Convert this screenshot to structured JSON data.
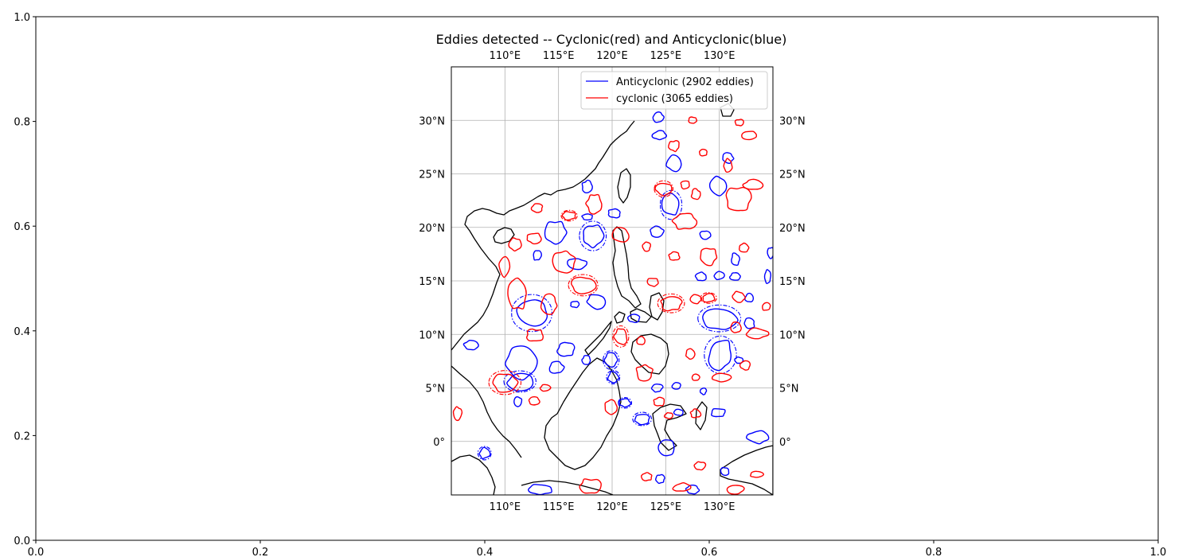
{
  "chart_data": {
    "type": "scatter",
    "title": "Eddies detected -- Cyclonic(red) and Anticyclonic(blue)",
    "outer_axes": {
      "xlim": [
        0.0,
        1.0
      ],
      "ylim": [
        0.0,
        1.0
      ],
      "x_ticks": [
        "0.0",
        "0.2",
        "0.4",
        "0.6",
        "0.8",
        "1.0"
      ],
      "y_ticks": [
        "0.0",
        "0.2",
        "0.4",
        "0.6",
        "0.8",
        "1.0"
      ]
    },
    "map": {
      "lon_range": [
        105,
        135
      ],
      "lat_range": [
        -5,
        35
      ],
      "lon_ticks": [
        "110°E",
        "115°E",
        "120°E",
        "125°E",
        "130°E"
      ],
      "lat_ticks": [
        "0°",
        "5°N",
        "10°N",
        "15°N",
        "20°N",
        "25°N",
        "30°N"
      ],
      "lon_tick_values": [
        110,
        115,
        120,
        125,
        130
      ],
      "lat_tick_values": [
        0,
        5,
        10,
        15,
        20,
        25,
        30
      ],
      "grid": true
    },
    "legend": {
      "location": "top-right",
      "entries": [
        {
          "label": "Anticyclonic (2902 eddies)",
          "color": "#0000ff"
        },
        {
          "label": "cyclonic (3065 eddies)",
          "color": "#ff0000"
        }
      ]
    },
    "colors": {
      "anticyclonic": "#0000ff",
      "cyclonic": "#ff0000",
      "coast": "#000000",
      "grid": "#b0b0b0"
    },
    "series": [
      {
        "name": "Anticyclonic (2902 eddies)",
        "kind": "anticyclonic",
        "eddies": [
          {
            "lon": 124.3,
            "lat": 30.3,
            "rx": 0.5,
            "ry": 0.5
          },
          {
            "lon": 124.4,
            "lat": 28.6,
            "rx": 0.7,
            "ry": 0.4
          },
          {
            "lon": 125.8,
            "lat": 26.0,
            "rx": 0.7,
            "ry": 0.8
          },
          {
            "lon": 130.8,
            "lat": 26.5,
            "rx": 0.5,
            "ry": 0.5
          },
          {
            "lon": 129.9,
            "lat": 23.8,
            "rx": 0.8,
            "ry": 0.9
          },
          {
            "lon": 125.5,
            "lat": 22.1,
            "rx": 0.8,
            "ry": 1.0,
            "dashed": true
          },
          {
            "lon": 117.7,
            "lat": 23.8,
            "rx": 0.5,
            "ry": 0.6
          },
          {
            "lon": 120.2,
            "lat": 21.3,
            "rx": 0.6,
            "ry": 0.4
          },
          {
            "lon": 117.7,
            "lat": 21.0,
            "rx": 0.5,
            "ry": 0.3
          },
          {
            "lon": 114.7,
            "lat": 19.5,
            "rx": 1.1,
            "ry": 1.1
          },
          {
            "lon": 118.2,
            "lat": 19.2,
            "rx": 1.0,
            "ry": 1.1,
            "dashed": true
          },
          {
            "lon": 113.0,
            "lat": 17.4,
            "rx": 0.4,
            "ry": 0.5
          },
          {
            "lon": 116.7,
            "lat": 16.6,
            "rx": 0.9,
            "ry": 0.5
          },
          {
            "lon": 124.2,
            "lat": 19.6,
            "rx": 0.6,
            "ry": 0.5
          },
          {
            "lon": 128.7,
            "lat": 19.3,
            "rx": 0.5,
            "ry": 0.4
          },
          {
            "lon": 131.5,
            "lat": 17.0,
            "rx": 0.4,
            "ry": 0.6
          },
          {
            "lon": 128.3,
            "lat": 15.4,
            "rx": 0.5,
            "ry": 0.4
          },
          {
            "lon": 130.0,
            "lat": 15.5,
            "rx": 0.5,
            "ry": 0.4
          },
          {
            "lon": 131.5,
            "lat": 15.4,
            "rx": 0.5,
            "ry": 0.4
          },
          {
            "lon": 134.8,
            "lat": 17.6,
            "rx": 0.3,
            "ry": 0.5
          },
          {
            "lon": 134.5,
            "lat": 15.4,
            "rx": 0.3,
            "ry": 0.6
          },
          {
            "lon": 132.8,
            "lat": 13.4,
            "rx": 0.4,
            "ry": 0.4
          },
          {
            "lon": 130.0,
            "lat": 11.5,
            "rx": 1.6,
            "ry": 1.0,
            "dashed": true
          },
          {
            "lon": 132.8,
            "lat": 11.0,
            "rx": 0.5,
            "ry": 0.5
          },
          {
            "lon": 112.5,
            "lat": 12.0,
            "rx": 1.5,
            "ry": 1.3,
            "dashed": true
          },
          {
            "lon": 118.5,
            "lat": 13.1,
            "rx": 0.9,
            "ry": 0.7
          },
          {
            "lon": 116.5,
            "lat": 12.8,
            "rx": 0.4,
            "ry": 0.3
          },
          {
            "lon": 122.0,
            "lat": 11.5,
            "rx": 0.6,
            "ry": 0.4
          },
          {
            "lon": 106.9,
            "lat": 9.0,
            "rx": 0.7,
            "ry": 0.5
          },
          {
            "lon": 111.5,
            "lat": 7.4,
            "rx": 1.4,
            "ry": 1.6
          },
          {
            "lon": 115.7,
            "lat": 8.6,
            "rx": 0.8,
            "ry": 0.7
          },
          {
            "lon": 114.8,
            "lat": 6.9,
            "rx": 0.7,
            "ry": 0.6
          },
          {
            "lon": 117.6,
            "lat": 7.6,
            "rx": 0.4,
            "ry": 0.4
          },
          {
            "lon": 119.9,
            "lat": 7.6,
            "rx": 0.6,
            "ry": 0.7,
            "dashed": true
          },
          {
            "lon": 120.1,
            "lat": 6.0,
            "rx": 0.5,
            "ry": 0.5,
            "dashed": true
          },
          {
            "lon": 130.1,
            "lat": 8.1,
            "rx": 1.2,
            "ry": 1.4,
            "dashed": true
          },
          {
            "lon": 131.8,
            "lat": 7.6,
            "rx": 0.4,
            "ry": 0.3
          },
          {
            "lon": 111.4,
            "lat": 5.6,
            "rx": 1.2,
            "ry": 0.8,
            "dashed": true
          },
          {
            "lon": 124.2,
            "lat": 5.0,
            "rx": 0.5,
            "ry": 0.4
          },
          {
            "lon": 126.0,
            "lat": 5.2,
            "rx": 0.4,
            "ry": 0.3
          },
          {
            "lon": 128.5,
            "lat": 4.7,
            "rx": 0.3,
            "ry": 0.3
          },
          {
            "lon": 111.2,
            "lat": 3.7,
            "rx": 0.4,
            "ry": 0.5
          },
          {
            "lon": 121.2,
            "lat": 3.6,
            "rx": 0.5,
            "ry": 0.4,
            "dashed": true
          },
          {
            "lon": 122.8,
            "lat": 2.1,
            "rx": 0.7,
            "ry": 0.5,
            "dashed": true
          },
          {
            "lon": 126.2,
            "lat": 2.7,
            "rx": 0.4,
            "ry": 0.3
          },
          {
            "lon": 129.9,
            "lat": 2.7,
            "rx": 0.7,
            "ry": 0.4
          },
          {
            "lon": 133.6,
            "lat": 0.4,
            "rx": 1.0,
            "ry": 0.6
          },
          {
            "lon": 125.0,
            "lat": -0.6,
            "rx": 0.8,
            "ry": 0.8
          },
          {
            "lon": 108.1,
            "lat": -1.1,
            "rx": 0.5,
            "ry": 0.5,
            "dashed": true
          },
          {
            "lon": 113.3,
            "lat": -4.5,
            "rx": 1.1,
            "ry": 0.5
          },
          {
            "lon": 124.5,
            "lat": -3.5,
            "rx": 0.4,
            "ry": 0.4
          },
          {
            "lon": 130.5,
            "lat": -2.8,
            "rx": 0.4,
            "ry": 0.4
          },
          {
            "lon": 127.5,
            "lat": -4.5,
            "rx": 0.6,
            "ry": 0.4
          }
        ]
      },
      {
        "name": "cyclonic (3065 eddies)",
        "kind": "cyclonic",
        "eddies": [
          {
            "lon": 127.5,
            "lat": 30.0,
            "rx": 0.4,
            "ry": 0.3
          },
          {
            "lon": 125.8,
            "lat": 27.6,
            "rx": 0.5,
            "ry": 0.5
          },
          {
            "lon": 128.5,
            "lat": 27.0,
            "rx": 0.4,
            "ry": 0.3
          },
          {
            "lon": 132.8,
            "lat": 28.6,
            "rx": 0.8,
            "ry": 0.4
          },
          {
            "lon": 131.9,
            "lat": 29.8,
            "rx": 0.4,
            "ry": 0.3
          },
          {
            "lon": 130.8,
            "lat": 25.8,
            "rx": 0.4,
            "ry": 0.6
          },
          {
            "lon": 133.2,
            "lat": 24.0,
            "rx": 0.9,
            "ry": 0.5
          },
          {
            "lon": 131.8,
            "lat": 22.6,
            "rx": 1.2,
            "ry": 1.2
          },
          {
            "lon": 124.8,
            "lat": 23.6,
            "rx": 0.7,
            "ry": 0.6,
            "dashed": true
          },
          {
            "lon": 126.8,
            "lat": 24.0,
            "rx": 0.4,
            "ry": 0.4
          },
          {
            "lon": 127.8,
            "lat": 23.1,
            "rx": 0.4,
            "ry": 0.5
          },
          {
            "lon": 126.8,
            "lat": 20.6,
            "rx": 1.1,
            "ry": 0.8
          },
          {
            "lon": 118.3,
            "lat": 22.2,
            "rx": 0.7,
            "ry": 0.9
          },
          {
            "lon": 116.0,
            "lat": 21.1,
            "rx": 0.6,
            "ry": 0.4,
            "dashed": true
          },
          {
            "lon": 113.0,
            "lat": 21.8,
            "rx": 0.5,
            "ry": 0.4
          },
          {
            "lon": 120.8,
            "lat": 19.3,
            "rx": 0.8,
            "ry": 0.7
          },
          {
            "lon": 112.7,
            "lat": 19.0,
            "rx": 0.7,
            "ry": 0.5
          },
          {
            "lon": 111.0,
            "lat": 18.4,
            "rx": 0.6,
            "ry": 0.6
          },
          {
            "lon": 123.2,
            "lat": 18.2,
            "rx": 0.4,
            "ry": 0.4
          },
          {
            "lon": 125.8,
            "lat": 17.3,
            "rx": 0.5,
            "ry": 0.4
          },
          {
            "lon": 129.0,
            "lat": 17.3,
            "rx": 0.8,
            "ry": 0.8
          },
          {
            "lon": 132.3,
            "lat": 18.1,
            "rx": 0.5,
            "ry": 0.4
          },
          {
            "lon": 110.0,
            "lat": 16.4,
            "rx": 0.5,
            "ry": 1.0
          },
          {
            "lon": 115.5,
            "lat": 16.8,
            "rx": 1.0,
            "ry": 1.0
          },
          {
            "lon": 111.2,
            "lat": 13.8,
            "rx": 0.9,
            "ry": 1.5
          },
          {
            "lon": 114.1,
            "lat": 12.8,
            "rx": 0.8,
            "ry": 0.9
          },
          {
            "lon": 117.3,
            "lat": 14.6,
            "rx": 1.1,
            "ry": 0.8,
            "dashed": true
          },
          {
            "lon": 123.8,
            "lat": 14.9,
            "rx": 0.5,
            "ry": 0.4
          },
          {
            "lon": 125.5,
            "lat": 12.9,
            "rx": 1.0,
            "ry": 0.7,
            "dashed": true
          },
          {
            "lon": 127.8,
            "lat": 13.3,
            "rx": 0.5,
            "ry": 0.4
          },
          {
            "lon": 129.0,
            "lat": 13.4,
            "rx": 0.6,
            "ry": 0.4,
            "dashed": true
          },
          {
            "lon": 131.8,
            "lat": 13.5,
            "rx": 0.6,
            "ry": 0.5
          },
          {
            "lon": 134.4,
            "lat": 12.6,
            "rx": 0.4,
            "ry": 0.4
          },
          {
            "lon": 133.5,
            "lat": 10.1,
            "rx": 1.0,
            "ry": 0.5
          },
          {
            "lon": 131.5,
            "lat": 10.6,
            "rx": 0.5,
            "ry": 0.5
          },
          {
            "lon": 112.8,
            "lat": 9.9,
            "rx": 0.8,
            "ry": 0.6
          },
          {
            "lon": 120.8,
            "lat": 9.8,
            "rx": 0.6,
            "ry": 0.8,
            "dashed": true
          },
          {
            "lon": 122.7,
            "lat": 9.4,
            "rx": 0.4,
            "ry": 0.4
          },
          {
            "lon": 127.3,
            "lat": 8.2,
            "rx": 0.4,
            "ry": 0.5
          },
          {
            "lon": 123.0,
            "lat": 6.4,
            "rx": 0.8,
            "ry": 0.7
          },
          {
            "lon": 127.8,
            "lat": 6.0,
            "rx": 0.4,
            "ry": 0.3
          },
          {
            "lon": 130.2,
            "lat": 6.0,
            "rx": 0.9,
            "ry": 0.4
          },
          {
            "lon": 132.4,
            "lat": 7.1,
            "rx": 0.5,
            "ry": 0.4
          },
          {
            "lon": 110.0,
            "lat": 5.5,
            "rx": 1.2,
            "ry": 0.9,
            "dashed": true
          },
          {
            "lon": 113.8,
            "lat": 5.0,
            "rx": 0.5,
            "ry": 0.3
          },
          {
            "lon": 112.7,
            "lat": 3.8,
            "rx": 0.5,
            "ry": 0.4
          },
          {
            "lon": 119.9,
            "lat": 3.2,
            "rx": 0.6,
            "ry": 0.7
          },
          {
            "lon": 124.4,
            "lat": 3.7,
            "rx": 0.5,
            "ry": 0.4
          },
          {
            "lon": 125.3,
            "lat": 2.4,
            "rx": 0.4,
            "ry": 0.3
          },
          {
            "lon": 127.8,
            "lat": 2.6,
            "rx": 0.5,
            "ry": 0.4
          },
          {
            "lon": 105.6,
            "lat": 2.6,
            "rx": 0.4,
            "ry": 0.6
          },
          {
            "lon": 118.0,
            "lat": -4.2,
            "rx": 1.1,
            "ry": 0.7
          },
          {
            "lon": 123.2,
            "lat": -3.3,
            "rx": 0.5,
            "ry": 0.4
          },
          {
            "lon": 126.5,
            "lat": -4.3,
            "rx": 0.8,
            "ry": 0.4
          },
          {
            "lon": 128.2,
            "lat": -2.3,
            "rx": 0.5,
            "ry": 0.4
          },
          {
            "lon": 131.5,
            "lat": -4.5,
            "rx": 0.8,
            "ry": 0.4
          },
          {
            "lon": 133.5,
            "lat": -3.1,
            "rx": 0.6,
            "ry": 0.3
          }
        ]
      }
    ]
  }
}
